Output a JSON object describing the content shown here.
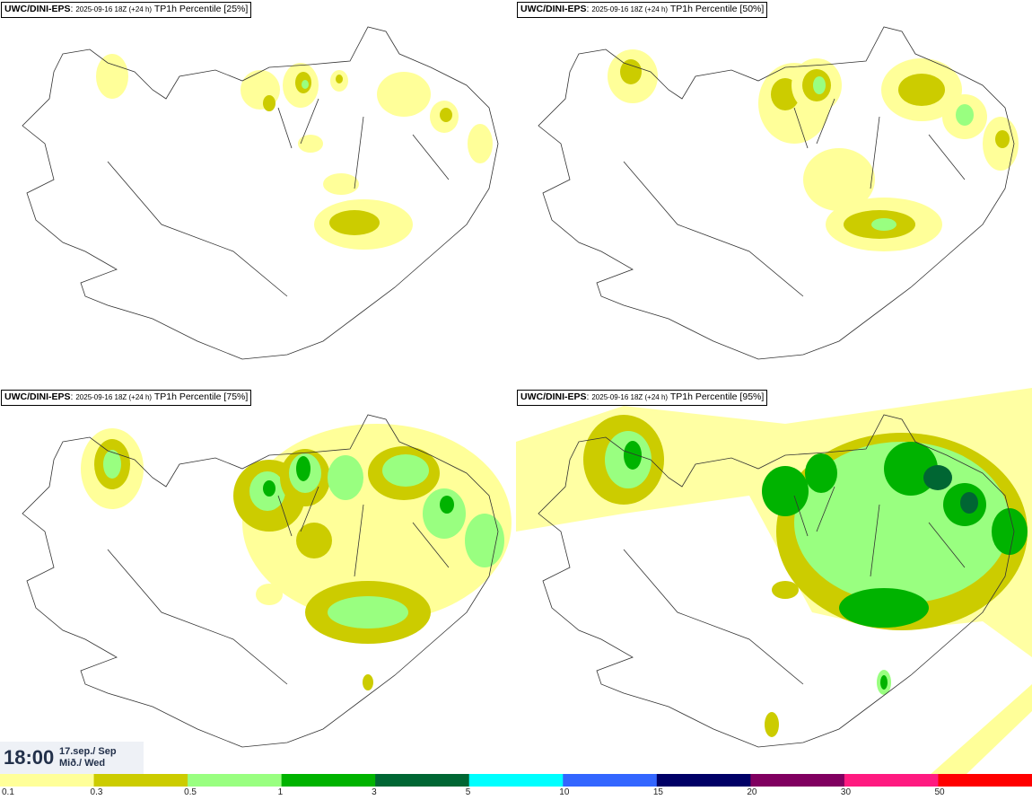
{
  "panels": [
    {
      "model": "UWC/DINI-EPS",
      "run": "2025-09-16 18Z (+24 h)",
      "label": "TP1h Percentile [25%]"
    },
    {
      "model": "UWC/DINI-EPS",
      "run": "2025-09-16 18Z (+24 h)",
      "label": "TP1h Percentile [50%]"
    },
    {
      "model": "UWC/DINI-EPS",
      "run": "2025-09-16 18Z (+24 h)",
      "label": "TP1h Percentile [75%]"
    },
    {
      "model": "UWC/DINI-EPS",
      "run": "2025-09-16 18Z (+24 h)",
      "label": "TP1h Percentile [95%]"
    }
  ],
  "valid": {
    "time": "18:00",
    "date_line1": "17.sep./ Sep",
    "date_line2": "Mið./ Wed"
  },
  "legend": {
    "ticks": [
      "0.1",
      "0.3",
      "0.5",
      "1",
      "3",
      "5",
      "10",
      "15",
      "20",
      "30",
      "50"
    ],
    "colors": [
      "#ffff99",
      "#cccc00",
      "#99ff80",
      "#00b300",
      "#006633",
      "#00ffff",
      "#3366ff",
      "#000066",
      "#800060",
      "#ff1a80",
      "#ff0000"
    ]
  }
}
